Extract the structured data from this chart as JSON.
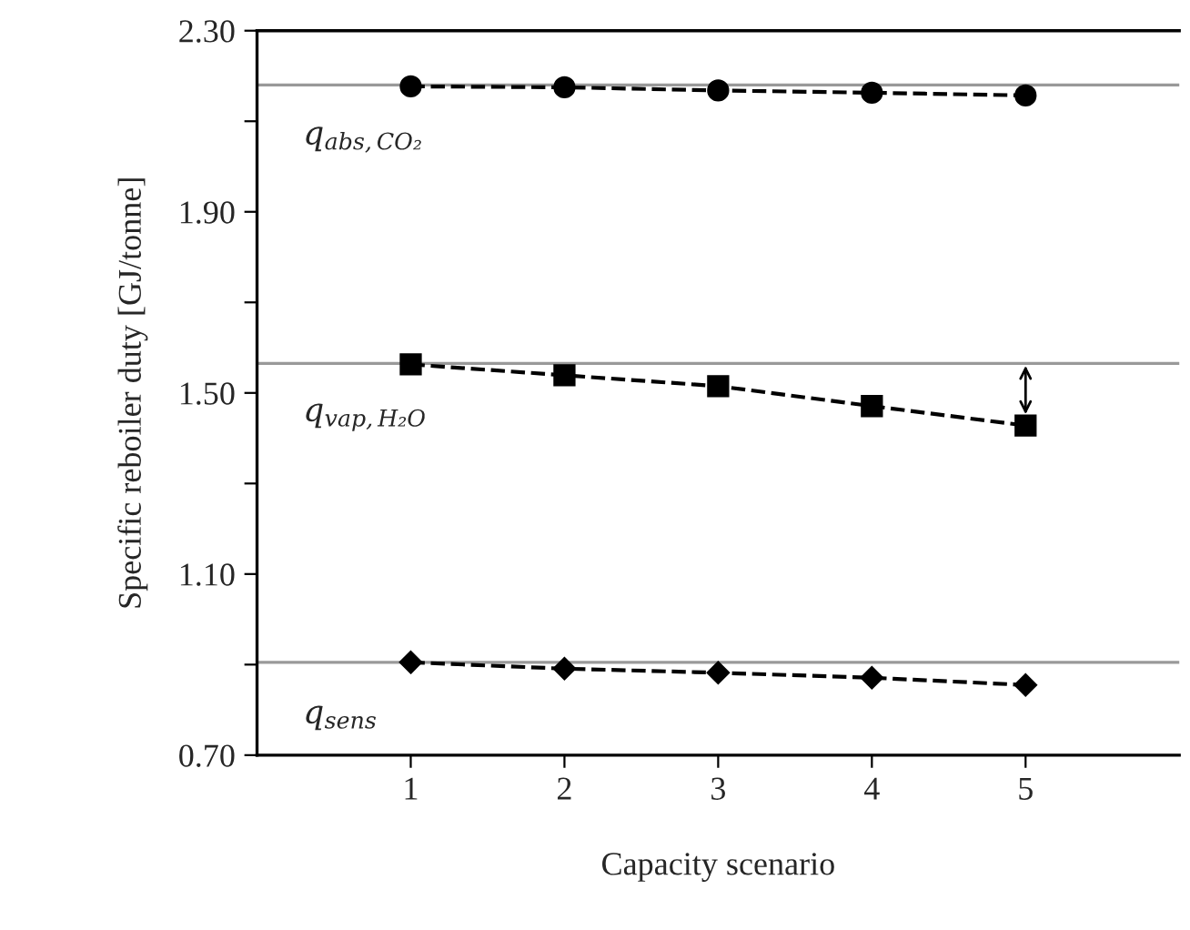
{
  "chart_data": {
    "type": "line",
    "xlabel": "Capacity scenario",
    "ylabel": "Specific reboiler duty [GJ/tonne]",
    "x": [
      1,
      2,
      3,
      4,
      5
    ],
    "series": [
      {
        "color": "#000000",
        "marker": "circle",
        "values": [
          2.177,
          2.175,
          2.168,
          2.163,
          2.157
        ]
      },
      {
        "color": "#000000",
        "marker": "square",
        "values": [
          1.563,
          1.539,
          1.515,
          1.471,
          1.428
        ]
      },
      {
        "color": "#000000",
        "marker": "diamond",
        "values": [
          0.905,
          0.891,
          0.882,
          0.871,
          0.855
        ]
      }
    ],
    "line_style": "dashed",
    "ref_lines": [
      {
        "axis": "y",
        "value": 2.18,
        "color": "#999999"
      },
      {
        "axis": "y",
        "value": 1.565,
        "color": "#999999"
      },
      {
        "axis": "y",
        "value": 0.905,
        "color": "#999999"
      }
    ],
    "annotations": [
      "q$_{abs,CO₂}$",
      "q$_{vap,H₂O}$",
      "q$_{sens}$"
    ],
    "xlim": [
      0,
      6
    ],
    "xticks": [
      1,
      2,
      3,
      4,
      5
    ],
    "ylim": [
      0.7,
      2.3
    ],
    "yticks": [
      {
        "value": 0.7,
        "label": "0.70"
      },
      {
        "value": 0.9,
        "label": null
      },
      {
        "value": 1.1,
        "label": "1.10"
      },
      {
        "value": 1.3,
        "label": null
      },
      {
        "value": 1.5,
        "label": "1.50"
      },
      {
        "value": 1.7,
        "label": null
      },
      {
        "value": 1.9,
        "label": "1.90"
      },
      {
        "value": 2.1,
        "label": null
      },
      {
        "value": 2.3,
        "label": "2.30"
      }
    ],
    "grid": false,
    "legend": false
  }
}
